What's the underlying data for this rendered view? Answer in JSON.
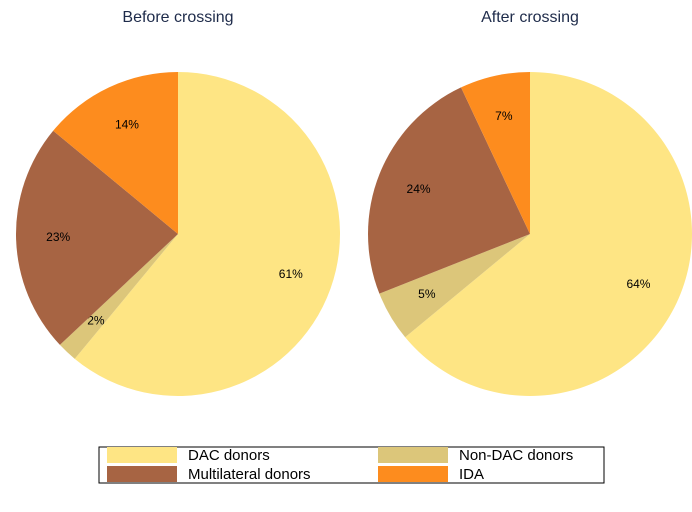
{
  "chart_data": [
    {
      "type": "pie",
      "title": "Before crossing",
      "categories": [
        "DAC donors",
        "Non-DAC donors",
        "Multilateral donors",
        "IDA"
      ],
      "values": [
        61,
        2,
        23,
        14
      ],
      "value_labels": [
        "61%",
        "2%",
        "23%",
        "14%"
      ],
      "colors": [
        "#fee584",
        "#dcc67a",
        "#a76443",
        "#fd8c1e"
      ]
    },
    {
      "type": "pie",
      "title": "After crossing",
      "categories": [
        "DAC donors",
        "Non-DAC donors",
        "Multilateral donors",
        "IDA"
      ],
      "values": [
        64,
        5,
        24,
        7
      ],
      "value_labels": [
        "64%",
        "5%",
        "24%",
        "7%"
      ],
      "colors": [
        "#fee584",
        "#dcc67a",
        "#a76443",
        "#fd8c1e"
      ]
    }
  ]
}
